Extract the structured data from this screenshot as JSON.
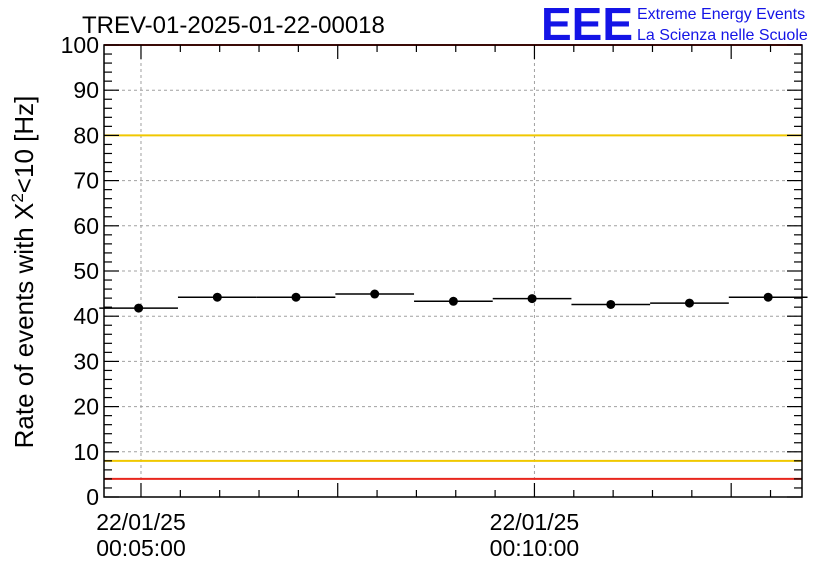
{
  "chart_data": {
    "type": "scatter",
    "title": "TREV-01-2025-01-22-00018",
    "ylabel": "Rate of events with X",
    "ylabel_sup": "2",
    "ylabel_rest": "<10 [Hz]",
    "ylim": [
      0,
      100
    ],
    "y_ticks": [
      "0",
      "10",
      "20",
      "30",
      "40",
      "50",
      "60",
      "70",
      "80",
      "90",
      "100"
    ],
    "x_tick_labels": [
      {
        "date": "22/01/25",
        "time": "00:05:00",
        "minute": 5
      },
      {
        "date": "22/01/25",
        "time": "00:10:00",
        "minute": 10
      }
    ],
    "xlim_minutes": [
      4.53,
      13.4
    ],
    "grid": true,
    "bin_width_minutes": 1.0,
    "points": [
      {
        "x": 4.97,
        "y": 41.8
      },
      {
        "x": 5.97,
        "y": 44.2
      },
      {
        "x": 6.97,
        "y": 44.2
      },
      {
        "x": 7.97,
        "y": 44.9
      },
      {
        "x": 8.97,
        "y": 43.3
      },
      {
        "x": 9.97,
        "y": 43.9
      },
      {
        "x": 10.97,
        "y": 42.6
      },
      {
        "x": 11.97,
        "y": 42.9
      },
      {
        "x": 12.97,
        "y": 44.2
      }
    ],
    "reference_lines": [
      {
        "y": 100,
        "color": "#e8261d"
      },
      {
        "y": 80,
        "color": "#f0c800"
      },
      {
        "y": 8,
        "color": "#f0c800"
      },
      {
        "y": 4,
        "color": "#e8261d"
      }
    ]
  },
  "logo": {
    "mark": "EEE",
    "line1": "Extreme Energy Events",
    "line2": "La Scienza nelle Scuole",
    "color": "#1414e6"
  }
}
